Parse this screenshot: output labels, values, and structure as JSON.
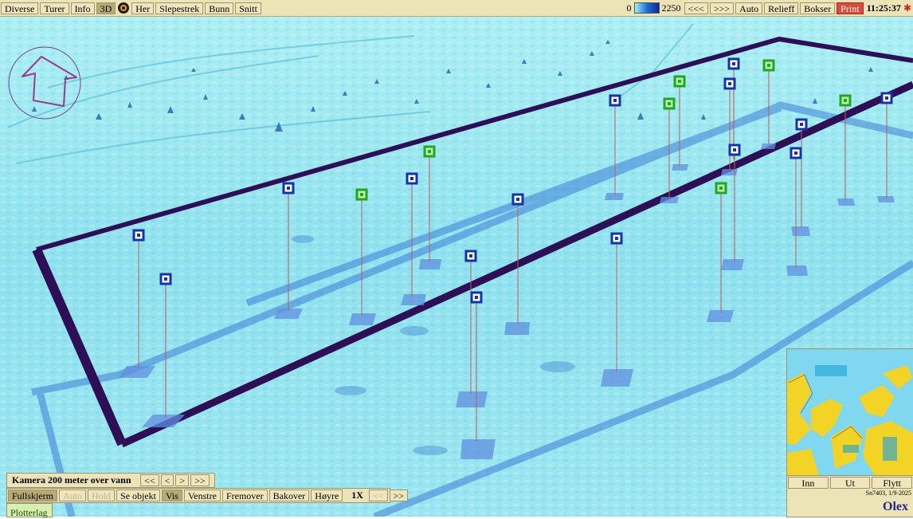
{
  "toolbar_top": {
    "left_buttons": [
      "Diverse",
      "Turer",
      "Info",
      "3D",
      "Her",
      "Slepestrek",
      "Bunn",
      "Snitt"
    ],
    "active": "3D",
    "depth_min": "0",
    "depth_max": "2250",
    "right_buttons": [
      "<<<",
      ">>>",
      "Auto",
      "Relieff",
      "Bokser",
      "Print"
    ],
    "clock": "11:25:37"
  },
  "camera_panel": {
    "label": "Kamera 200 meter over vann",
    "nav": [
      "<<",
      "<",
      ">",
      ">>"
    ]
  },
  "bottom_toolbar": {
    "buttons": [
      "Fullskjerm",
      "Auto",
      "Hold",
      "Se objekt",
      "Vis",
      "Venstre",
      "Fremover",
      "Bakover",
      "Høyre"
    ],
    "speed": "1X",
    "speed_nav": [
      "<<",
      ">>"
    ],
    "plotter_label": "Plotterlag"
  },
  "minimap": {
    "buttons": [
      "Inn",
      "Ut",
      "Flytt"
    ],
    "position_text": "Sn7403, 1/9-2025",
    "logo": "Olex"
  },
  "colors": {
    "sea": "#8ee6ef",
    "sea_light": "#c9f6f8",
    "boundary": "#2e0f55",
    "marker_blue": "#1533a6",
    "marker_green": "#22a524",
    "stem": "#c45a5a",
    "shadow": "#5f8fe0",
    "toolbar": "#ece3b6"
  }
}
